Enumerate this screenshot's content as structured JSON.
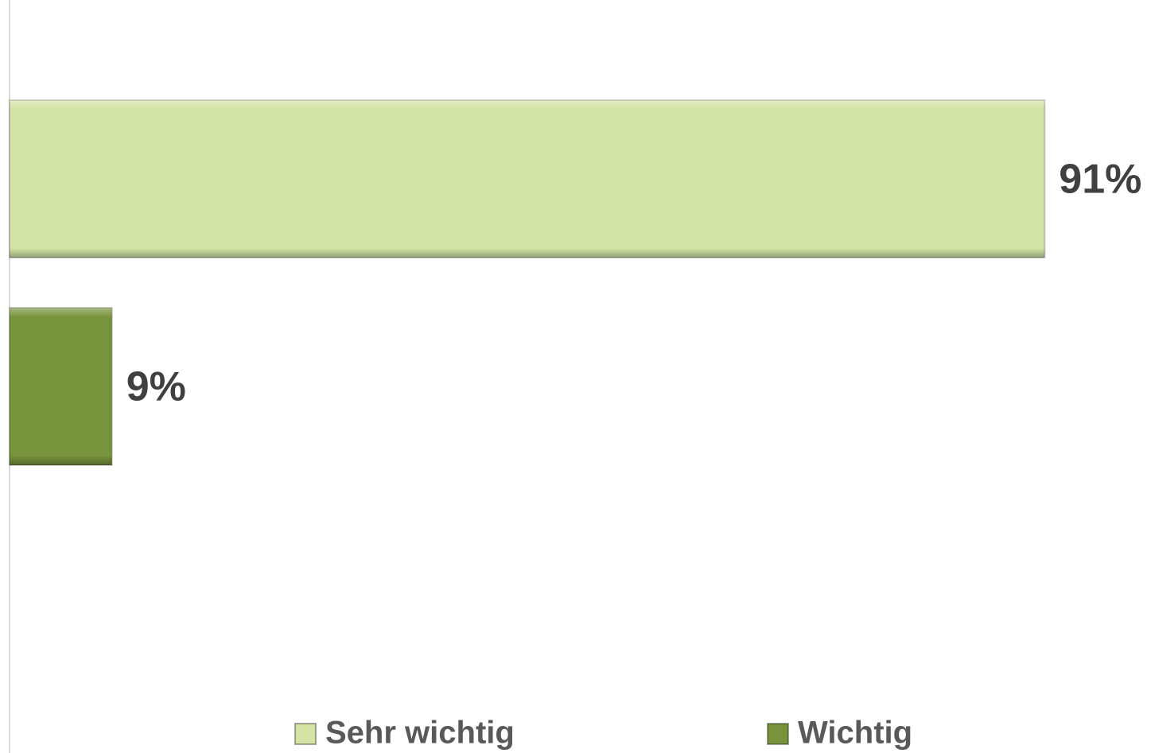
{
  "chart_data": {
    "type": "bar",
    "orientation": "horizontal",
    "categories": [
      null
    ],
    "series": [
      {
        "name": "Sehr wichtig",
        "color": "#d3e4a6",
        "values": [
          91
        ],
        "value_labels": [
          "91%"
        ]
      },
      {
        "name": "Wichtig",
        "color": "#77933c",
        "values": [
          9
        ],
        "value_labels": [
          "9%"
        ]
      }
    ],
    "xlim": [
      0,
      100
    ],
    "legend": "bottom"
  }
}
